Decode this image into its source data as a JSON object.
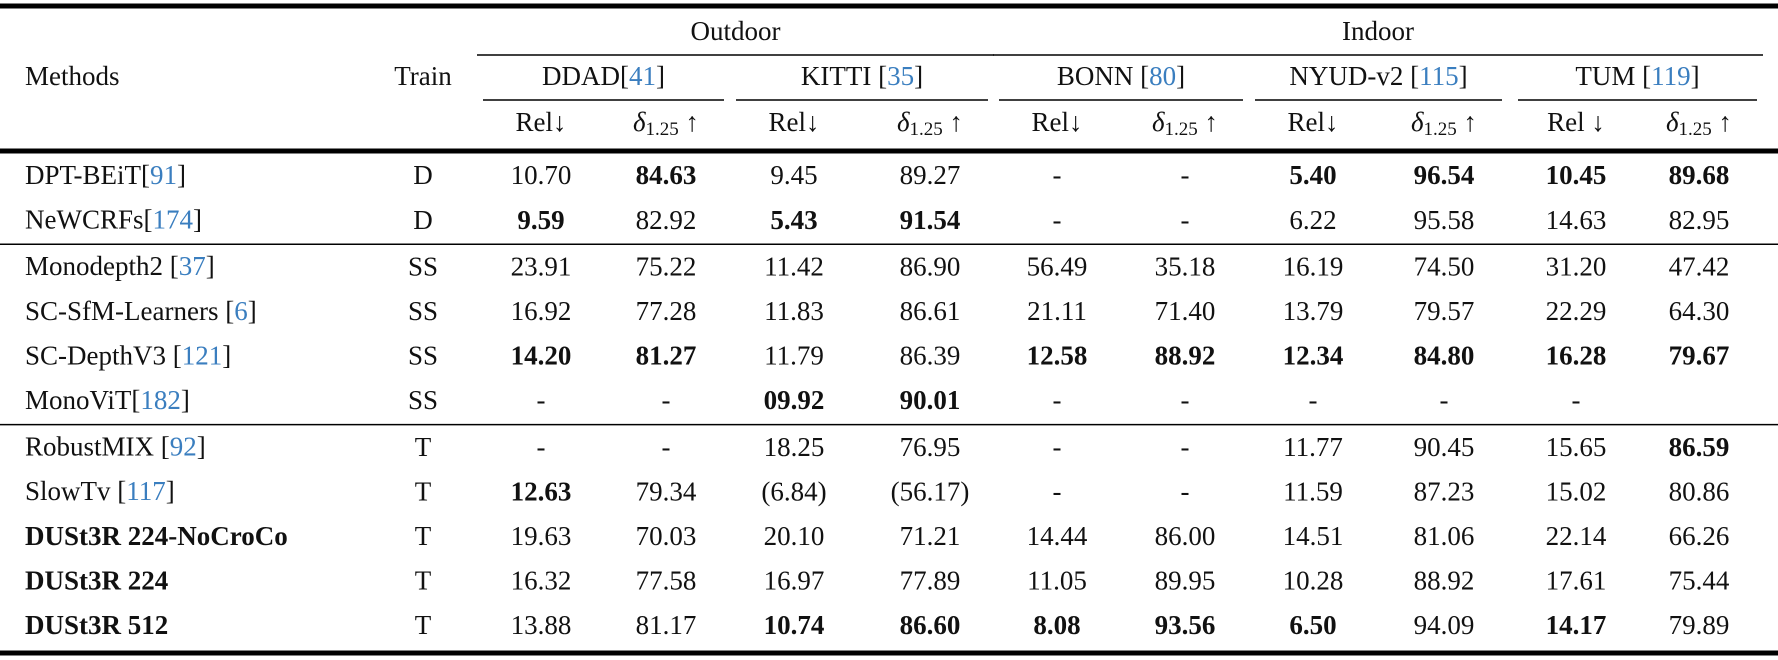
{
  "table": {
    "headers": {
      "methods": "Methods",
      "train": "Train",
      "groups": [
        {
          "label": "Outdoor",
          "span": [
            0,
            1
          ]
        },
        {
          "label": "Indoor",
          "span": [
            2,
            4
          ]
        }
      ],
      "datasets": [
        {
          "name": "DDAD",
          "ref": "41"
        },
        {
          "name": "KITTI ",
          "ref": "35"
        },
        {
          "name": "BONN ",
          "ref": "80"
        },
        {
          "name": "NYUD-v2 ",
          "ref": "115"
        },
        {
          "name": "TUM ",
          "ref": "119"
        }
      ],
      "subheaders": [
        {
          "symbol": "Rel",
          "arrow": "↓"
        },
        {
          "symbol": "δ",
          "sub": "1.25",
          "arrow": " ↑"
        },
        {
          "symbol": "Rel",
          "arrow": "↓"
        },
        {
          "symbol": "δ",
          "sub": "1.25",
          "arrow": " ↑"
        },
        {
          "symbol": "Rel",
          "arrow": "↓"
        },
        {
          "symbol": "δ",
          "sub": "1.25",
          "arrow": " ↑"
        },
        {
          "symbol": "Rel",
          "arrow": "↓"
        },
        {
          "symbol": "δ",
          "sub": "1.25",
          "arrow": " ↑"
        },
        {
          "symbol": "Rel ",
          "arrow": "↓"
        },
        {
          "symbol": "δ",
          "sub": "1.25",
          "arrow": " ↑"
        }
      ]
    },
    "groups": [
      [
        {
          "method": "DPT-BEiT",
          "ref": "91",
          "train": "D",
          "values": [
            "10.70",
            "84.63",
            "9.45",
            "89.27",
            "-",
            "-",
            "5.40",
            "96.54",
            "10.45",
            "89.68"
          ],
          "bold": [
            1,
            6,
            7,
            8,
            9
          ]
        },
        {
          "method": "NeWCRFs",
          "ref": "174",
          "train": "D",
          "values": [
            "9.59",
            "82.92",
            "5.43",
            "91.54",
            "-",
            "-",
            "6.22",
            "95.58",
            "14.63",
            "82.95"
          ],
          "bold": [
            0,
            2,
            3
          ]
        }
      ],
      [
        {
          "method": "Monodepth2 ",
          "ref": "37",
          "train": "SS",
          "values": [
            "23.91",
            "75.22",
            "11.42",
            "86.90",
            "56.49",
            "35.18",
            "16.19",
            "74.50",
            "31.20",
            "47.42"
          ],
          "bold": []
        },
        {
          "method": "SC-SfM-Learners ",
          "ref": "6",
          "train": "SS",
          "values": [
            "16.92",
            "77.28",
            "11.83",
            "86.61",
            "21.11",
            "71.40",
            "13.79",
            "79.57",
            "22.29",
            "64.30"
          ],
          "bold": []
        },
        {
          "method": "SC-DepthV3 ",
          "ref": "121",
          "train": "SS",
          "values": [
            "14.20",
            "81.27",
            "11.79",
            "86.39",
            "12.58",
            "88.92",
            "12.34",
            "84.80",
            "16.28",
            "79.67"
          ],
          "bold": [
            0,
            1,
            4,
            5,
            6,
            7,
            8,
            9
          ]
        },
        {
          "method": "MonoViT",
          "ref": "182",
          "train": "SS",
          "values": [
            "-",
            "-",
            "09.92",
            "90.01",
            "-",
            "-",
            "-",
            "-",
            "-",
            ""
          ],
          "bold": [
            2,
            3
          ]
        }
      ],
      [
        {
          "method": "RobustMIX ",
          "ref": "92",
          "train": "T",
          "values": [
            "-",
            "-",
            "18.25",
            "76.95",
            "-",
            "-",
            "11.77",
            "90.45",
            "15.65",
            "86.59"
          ],
          "bold": [
            9
          ]
        },
        {
          "method": "SlowTv ",
          "ref": "117",
          "train": "T",
          "values": [
            "12.63",
            "79.34",
            "(6.84)",
            "(56.17)",
            "-",
            "-",
            "11.59",
            "87.23",
            "15.02",
            "80.86"
          ],
          "bold": [
            0
          ]
        },
        {
          "method": "DUSt3R 224-NoCroCo",
          "train": "T",
          "values": [
            "19.63",
            "70.03",
            "20.10",
            "71.21",
            "14.44",
            "86.00",
            "14.51",
            "81.06",
            "22.14",
            "66.26"
          ],
          "bold": [],
          "method_bold": true
        },
        {
          "method": "DUSt3R 224",
          "train": "T",
          "values": [
            "16.32",
            "77.58",
            "16.97",
            "77.89",
            "11.05",
            "89.95",
            "10.28",
            "88.92",
            "17.61",
            "75.44"
          ],
          "bold": [],
          "method_bold": true
        },
        {
          "method": "DUSt3R 512",
          "train": "T",
          "values": [
            "13.88",
            "81.17",
            "10.74",
            "86.60",
            "8.08",
            "93.56",
            "6.50",
            "94.09",
            "14.17",
            "79.89"
          ],
          "bold": [
            2,
            3,
            4,
            5,
            6,
            8
          ],
          "method_bold": true
        }
      ]
    ]
  }
}
